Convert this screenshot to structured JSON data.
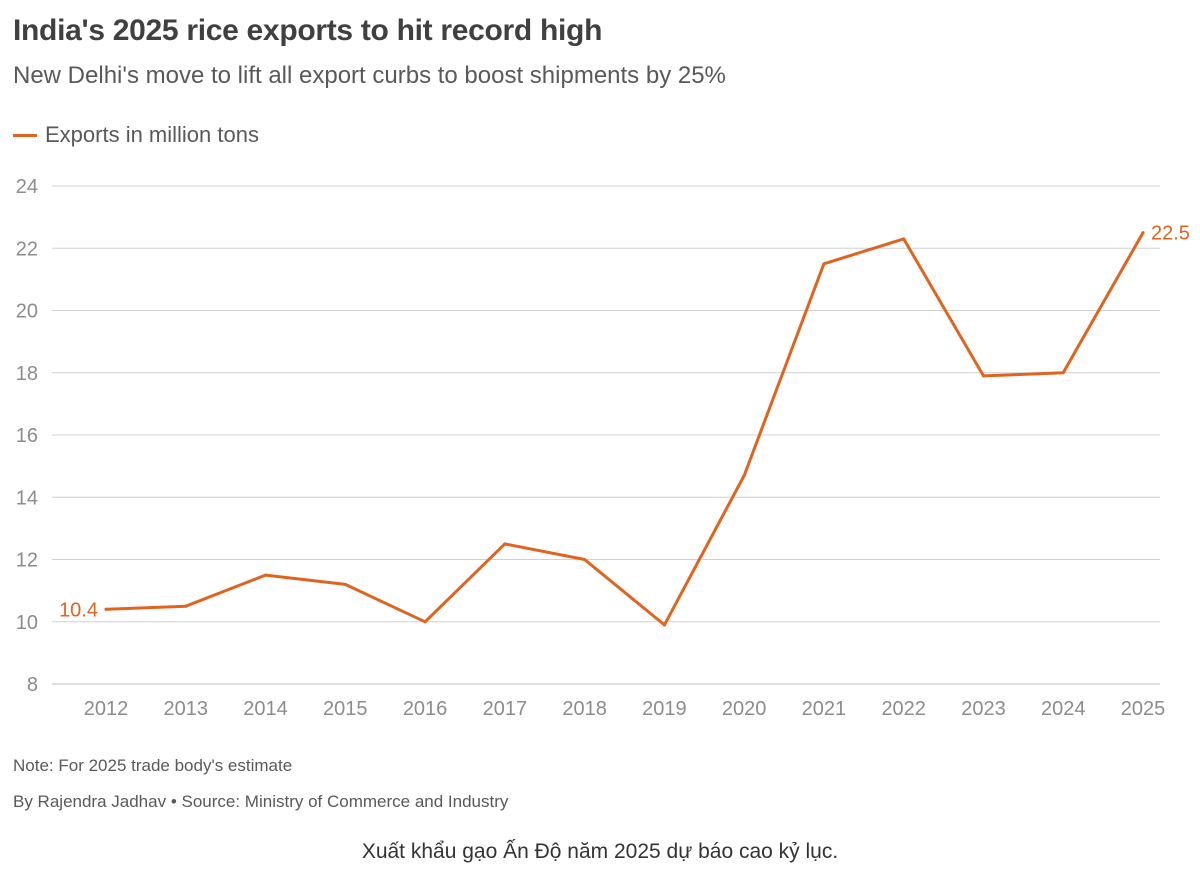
{
  "header": {
    "title": "India's 2025 rice exports to hit record high",
    "subtitle": "New Delhi's move to lift all export curbs to boost shipments by 25%"
  },
  "legend": {
    "label": "Exports in million tons"
  },
  "colors": {
    "series": "#e0641e",
    "grid": "#d0d0d0",
    "axis_text": "#8c8c8c"
  },
  "chart_data": {
    "type": "line",
    "title": "India's 2025 rice exports to hit record high",
    "subtitle": "New Delhi's move to lift all export curbs to boost shipments by 25%",
    "xlabel": "",
    "ylabel": "",
    "x": [
      "2012",
      "2013",
      "2014",
      "2015",
      "2016",
      "2017",
      "2018",
      "2019",
      "2020",
      "2021",
      "2022",
      "2023",
      "2024",
      "2025"
    ],
    "series": [
      {
        "name": "Exports in million tons",
        "values": [
          10.4,
          10.5,
          11.5,
          11.2,
          10.0,
          12.5,
          12.0,
          9.9,
          14.7,
          21.5,
          22.3,
          17.9,
          18.0,
          22.5
        ]
      }
    ],
    "ylim": [
      8,
      24
    ],
    "yticks": [
      8,
      10,
      12,
      14,
      16,
      18,
      20,
      22,
      24
    ],
    "grid": true,
    "legend_position": "top-left",
    "annotations": [
      {
        "x": "2012",
        "y": 10.4,
        "text": "10.4"
      },
      {
        "x": "2025",
        "y": 22.5,
        "text": "22.5"
      }
    ]
  },
  "footer": {
    "note": "Note: For 2025 trade body's estimate",
    "byline": "By Rajendra Jadhav • Source: Ministry of Commerce and Industry",
    "caption": "Xuất khẩu gạo Ấn Độ năm 2025 dự báo cao kỷ lục."
  }
}
